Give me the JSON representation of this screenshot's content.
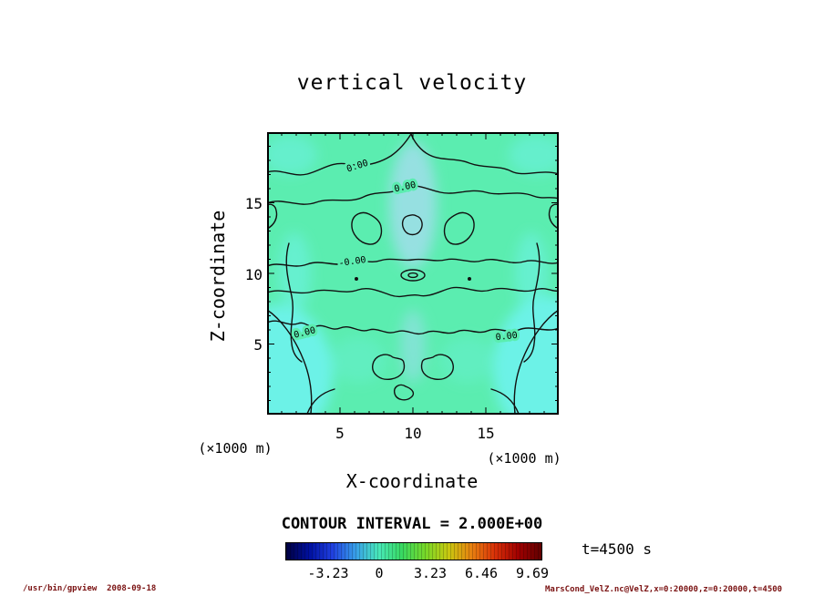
{
  "title": "vertical velocity",
  "axes": {
    "x_label": "X-coordinate",
    "y_label": "Z-coordinate",
    "x_unit": "(×1000 m)",
    "y_unit": "(×1000 m)",
    "x_ticks": [
      "5",
      "10",
      "15"
    ],
    "y_ticks": [
      "15",
      "10",
      "5"
    ]
  },
  "contour": {
    "interval_label": "CONTOUR INTERVAL = 2.000E+00",
    "labels": [
      "0.00",
      "0.00",
      "-0.00",
      "0.00",
      "0.00"
    ]
  },
  "colorbar": {
    "tick_labels": [
      "-3.23",
      "0",
      "3.23",
      "6.46",
      "9.69"
    ],
    "colors": [
      "#000040",
      "#0010a0",
      "#2040e0",
      "#38a0e8",
      "#48e8b8",
      "#38d860",
      "#78d828",
      "#c8c810",
      "#e88010",
      "#d83008",
      "#a00000",
      "#600000"
    ]
  },
  "time_label": "t=4500 s",
  "footer": {
    "left": "/usr/bin/gpview  2008-09-18",
    "right": "MarsCond_VelZ.nc@VelZ,x=0:20000,z=0:20000,t=4500"
  },
  "field_colors": {
    "base_green": "#5bedb0",
    "cyan_patch": "#6ef2ea",
    "pale_blue": "#aadcf2"
  },
  "chart_data": {
    "type": "heatmap",
    "subtype": "filled contour plot with line contours",
    "title": "vertical velocity",
    "xlabel": "X-coordinate (×1000 m)",
    "ylabel": "Z-coordinate (×1000 m)",
    "xlim": [
      0,
      20
    ],
    "ylim": [
      0,
      20
    ],
    "xticks": [
      5,
      10,
      15
    ],
    "yticks": [
      5,
      10,
      15
    ],
    "contour_interval": 2.0,
    "visible_contour_level": 0.0,
    "colorbar_ticks": [
      -3.23,
      0,
      3.23,
      6.46,
      9.69
    ],
    "colorbar_range_estimate": [
      -5.9,
      10.2
    ],
    "time": "t=4500 s",
    "notes": "Field is mostly near 0: spring-green shading over most of the domain with cyan (slightly negative) patches in the lower-left and lower-right corners and a pale-blue column at the horizontal center; symmetric wavy 0.00 contour bands cross the domain, with small closed loops near the center."
  }
}
